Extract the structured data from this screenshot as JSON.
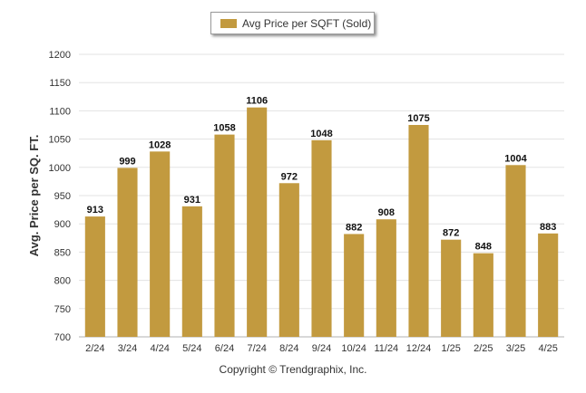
{
  "chart_data": {
    "type": "bar",
    "categories": [
      "2/24",
      "3/24",
      "4/24",
      "5/24",
      "6/24",
      "7/24",
      "8/24",
      "9/24",
      "10/24",
      "11/24",
      "12/24",
      "1/25",
      "2/25",
      "3/25",
      "4/25"
    ],
    "series": [
      {
        "name": "Avg Price per SQFT (Sold)",
        "values": [
          913,
          999,
          1028,
          931,
          1058,
          1106,
          972,
          1048,
          882,
          908,
          1075,
          872,
          848,
          1004,
          883
        ]
      }
    ],
    "ylabel": "Avg. Price per SQ. FT.",
    "xlabel": "",
    "ylim": [
      700,
      1200
    ],
    "yticks": [
      700,
      750,
      800,
      850,
      900,
      950,
      1000,
      1050,
      1100,
      1150,
      1200
    ],
    "grid": true,
    "legend": "top-center",
    "bar_color": "#c29a3f"
  },
  "footer": {
    "copyright": "Copyright © Trendgraphix, Inc."
  }
}
